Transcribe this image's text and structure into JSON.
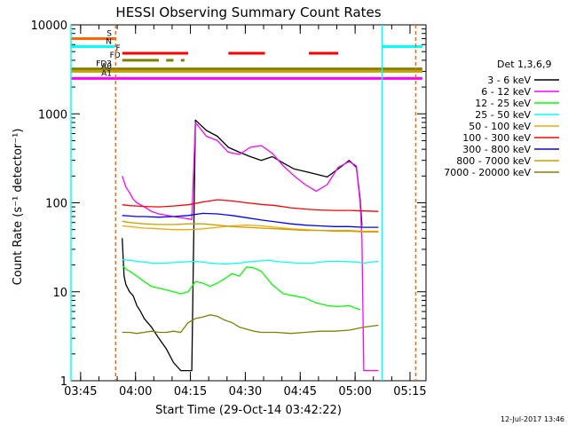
{
  "chart_data": {
    "type": "line",
    "title": "HESSI Observing Summary Count Rates",
    "xlabel": "Start Time (29-Oct-14 03:42:22)",
    "ylabel": "Count Rate (s⁻¹ detector⁻¹)",
    "y_scale": "log",
    "ylim": [
      1,
      10000
    ],
    "xlim_minutes": [
      0,
      97
    ],
    "x_ticks": [
      {
        "label": "03:45",
        "min": 2.63
      },
      {
        "label": "04:00",
        "min": 17.63
      },
      {
        "label": "04:15",
        "min": 32.63
      },
      {
        "label": "04:30",
        "min": 47.63
      },
      {
        "label": "04:45",
        "min": 62.63
      },
      {
        "label": "05:00",
        "min": 77.63
      },
      {
        "label": "05:15",
        "min": 92.63
      }
    ],
    "y_ticks": [
      {
        "label": "1",
        "value": 1
      },
      {
        "label": "10",
        "value": 10
      },
      {
        "label": "100",
        "value": 100
      },
      {
        "label": "1000",
        "value": 1000
      },
      {
        "label": "10000",
        "value": 10000
      }
    ],
    "legend_title": "Det 1,3,6,9",
    "legend_position": "right",
    "series": [
      {
        "name": "3 - 6 keV",
        "color": "#000000",
        "points": [
          [
            14,
            40
          ],
          [
            14.5,
            15
          ],
          [
            15,
            12
          ],
          [
            16,
            10
          ],
          [
            17,
            9
          ],
          [
            18,
            7
          ],
          [
            19,
            6
          ],
          [
            20,
            5
          ],
          [
            22,
            4
          ],
          [
            24,
            3
          ],
          [
            26,
            2.3
          ],
          [
            28,
            1.6
          ],
          [
            30,
            1.3
          ],
          [
            33,
            1.3
          ],
          [
            34,
            850
          ],
          [
            37,
            650
          ],
          [
            40,
            560
          ],
          [
            43,
            420
          ],
          [
            46,
            370
          ],
          [
            49,
            330
          ],
          [
            52,
            300
          ],
          [
            55,
            330
          ],
          [
            58,
            280
          ],
          [
            61,
            240
          ],
          [
            64,
            225
          ],
          [
            67,
            210
          ],
          [
            70,
            195
          ],
          [
            73,
            240
          ],
          [
            76,
            300
          ],
          [
            78,
            250
          ],
          [
            79,
            110
          ],
          [
            79.5,
            55
          ]
        ]
      },
      {
        "name": "6 - 12 keV",
        "color": "#ff00ff",
        "points": [
          [
            14,
            200
          ],
          [
            15,
            150
          ],
          [
            16,
            130
          ],
          [
            17,
            110
          ],
          [
            18,
            100
          ],
          [
            20,
            90
          ],
          [
            22,
            80
          ],
          [
            24,
            75
          ],
          [
            28,
            70
          ],
          [
            31,
            67
          ],
          [
            33,
            65
          ],
          [
            34,
            800
          ],
          [
            37,
            560
          ],
          [
            40,
            500
          ],
          [
            43,
            370
          ],
          [
            46,
            350
          ],
          [
            49,
            420
          ],
          [
            52,
            440
          ],
          [
            55,
            360
          ],
          [
            58,
            260
          ],
          [
            61,
            200
          ],
          [
            64,
            160
          ],
          [
            67,
            135
          ],
          [
            70,
            160
          ],
          [
            73,
            250
          ],
          [
            76,
            290
          ],
          [
            78,
            260
          ],
          [
            79,
            100
          ],
          [
            79.5,
            40
          ],
          [
            80,
            1.3
          ],
          [
            82,
            1.3
          ],
          [
            84,
            1.3
          ]
        ]
      },
      {
        "name": "12 - 25 keV",
        "color": "#00ff00",
        "points": [
          [
            14,
            20
          ],
          [
            15,
            18
          ],
          [
            16,
            17
          ],
          [
            18,
            15
          ],
          [
            20,
            13
          ],
          [
            22,
            11.5
          ],
          [
            24,
            11
          ],
          [
            26,
            10.5
          ],
          [
            28,
            10
          ],
          [
            30,
            9.5
          ],
          [
            32,
            10
          ],
          [
            34,
            13
          ],
          [
            36,
            12.5
          ],
          [
            38,
            11.5
          ],
          [
            40,
            12.5
          ],
          [
            42,
            14
          ],
          [
            44,
            16
          ],
          [
            46,
            15
          ],
          [
            48,
            19
          ],
          [
            50,
            18.5
          ],
          [
            52,
            17
          ],
          [
            55,
            12
          ],
          [
            58,
            9.5
          ],
          [
            61,
            9
          ],
          [
            64,
            8.5
          ],
          [
            67,
            7.5
          ],
          [
            70,
            7
          ],
          [
            73,
            6.8
          ],
          [
            76,
            7
          ],
          [
            78,
            6.5
          ],
          [
            79,
            6.3
          ]
        ]
      },
      {
        "name": "25 - 50 keV",
        "color": "#00ffff",
        "points": [
          [
            14,
            23
          ],
          [
            16,
            22.5
          ],
          [
            18,
            22
          ],
          [
            20,
            21.5
          ],
          [
            22,
            21
          ],
          [
            26,
            21
          ],
          [
            30,
            21.5
          ],
          [
            34,
            22
          ],
          [
            38,
            21
          ],
          [
            42,
            20.5
          ],
          [
            46,
            21
          ],
          [
            50,
            22
          ],
          [
            54,
            22.5
          ],
          [
            58,
            21.5
          ],
          [
            62,
            21
          ],
          [
            66,
            21
          ],
          [
            70,
            22
          ],
          [
            74,
            22
          ],
          [
            78,
            21.5
          ],
          [
            80,
            21
          ],
          [
            84,
            22
          ]
        ]
      },
      {
        "name": "50 - 100 keV",
        "color": "#ffa500",
        "points": [
          [
            14,
            55
          ],
          [
            16,
            54
          ],
          [
            18,
            53
          ],
          [
            20,
            52
          ],
          [
            24,
            51
          ],
          [
            28,
            50
          ],
          [
            32,
            50
          ],
          [
            36,
            51
          ],
          [
            40,
            53
          ],
          [
            44,
            55
          ],
          [
            48,
            56
          ],
          [
            52,
            55
          ],
          [
            56,
            53
          ],
          [
            60,
            51
          ],
          [
            64,
            50
          ],
          [
            68,
            49
          ],
          [
            72,
            49
          ],
          [
            76,
            49
          ],
          [
            80,
            48
          ],
          [
            84,
            48
          ]
        ]
      },
      {
        "name": "100 - 300 keV",
        "color": "#ff0000",
        "points": [
          [
            14,
            95
          ],
          [
            16,
            93
          ],
          [
            18,
            92
          ],
          [
            20,
            91
          ],
          [
            24,
            90
          ],
          [
            28,
            92
          ],
          [
            32,
            95
          ],
          [
            36,
            102
          ],
          [
            40,
            108
          ],
          [
            44,
            105
          ],
          [
            48,
            100
          ],
          [
            52,
            96
          ],
          [
            56,
            93
          ],
          [
            60,
            88
          ],
          [
            64,
            85
          ],
          [
            68,
            83
          ],
          [
            72,
            82
          ],
          [
            76,
            82
          ],
          [
            80,
            81
          ],
          [
            84,
            80
          ]
        ]
      },
      {
        "name": "300 - 800 keV",
        "color": "#0000ff",
        "points": [
          [
            14,
            72
          ],
          [
            16,
            71
          ],
          [
            18,
            70
          ],
          [
            20,
            70
          ],
          [
            24,
            69
          ],
          [
            28,
            70
          ],
          [
            32,
            72
          ],
          [
            36,
            76
          ],
          [
            40,
            75
          ],
          [
            44,
            72
          ],
          [
            48,
            68
          ],
          [
            52,
            64
          ],
          [
            56,
            61
          ],
          [
            60,
            58
          ],
          [
            64,
            56
          ],
          [
            68,
            55
          ],
          [
            72,
            54
          ],
          [
            76,
            54
          ],
          [
            80,
            53
          ],
          [
            84,
            53
          ]
        ]
      },
      {
        "name": "800 - 7000 keV",
        "color": "#c8a000",
        "points": [
          [
            14,
            62
          ],
          [
            16,
            60
          ],
          [
            18,
            59
          ],
          [
            20,
            58
          ],
          [
            24,
            57
          ],
          [
            28,
            57
          ],
          [
            32,
            58
          ],
          [
            36,
            58
          ],
          [
            40,
            56
          ],
          [
            44,
            54
          ],
          [
            48,
            53
          ],
          [
            52,
            52
          ],
          [
            56,
            51
          ],
          [
            60,
            50
          ],
          [
            64,
            49
          ],
          [
            68,
            49
          ],
          [
            72,
            48
          ],
          [
            76,
            48
          ],
          [
            80,
            47
          ],
          [
            84,
            47
          ]
        ]
      },
      {
        "name": "7000 - 20000 keV",
        "color": "#808000",
        "points": [
          [
            14,
            3.5
          ],
          [
            16,
            3.5
          ],
          [
            18,
            3.4
          ],
          [
            20,
            3.5
          ],
          [
            22,
            3.6
          ],
          [
            24,
            3.5
          ],
          [
            26,
            3.5
          ],
          [
            28,
            3.6
          ],
          [
            30,
            3.5
          ],
          [
            32,
            4.5
          ],
          [
            34,
            5
          ],
          [
            36,
            5.2
          ],
          [
            38,
            5.5
          ],
          [
            40,
            5.3
          ],
          [
            42,
            4.8
          ],
          [
            44,
            4.5
          ],
          [
            46,
            4
          ],
          [
            48,
            3.8
          ],
          [
            50,
            3.6
          ],
          [
            52,
            3.5
          ],
          [
            56,
            3.5
          ],
          [
            60,
            3.4
          ],
          [
            64,
            3.5
          ],
          [
            68,
            3.6
          ],
          [
            72,
            3.6
          ],
          [
            76,
            3.7
          ],
          [
            80,
            4
          ],
          [
            84,
            4.2
          ]
        ]
      }
    ],
    "state_bars": [
      {
        "label": "S",
        "color": "#ff6600",
        "value": 7000,
        "segments": [
          [
            0,
            12
          ]
        ]
      },
      {
        "label": "N",
        "color": "#00ffff",
        "value": 5700,
        "segments": [
          [
            0,
            12
          ],
          [
            85,
            96
          ]
        ]
      },
      {
        "label": "F",
        "color": "#ff0000",
        "value": 4800,
        "segments": [
          [
            14,
            32
          ],
          [
            43,
            53
          ],
          [
            65,
            73
          ]
        ]
      },
      {
        "label": "FD",
        "color": "#808000",
        "value": 4000,
        "segments": [
          [
            14,
            24
          ],
          [
            26,
            28
          ],
          [
            30,
            31
          ]
        ]
      },
      {
        "label": "FD3",
        "color": "#808000",
        "value": 3200,
        "segments": [
          [
            0,
            96
          ]
        ]
      },
      {
        "label": "A0",
        "color": "#c8a000",
        "value": 3000,
        "segments": [
          [
            0,
            96
          ]
        ]
      },
      {
        "label": "A1",
        "color": "#ff00ff",
        "value": 2500,
        "segments": [
          [
            0,
            96
          ]
        ]
      }
    ],
    "vertical_markers": [
      {
        "color": "#00ffff",
        "at": [
          0,
          85
        ]
      },
      {
        "color": "#ff6600",
        "at": [
          12.2,
          94.2
        ],
        "dashed": true
      }
    ],
    "footer": "12-Jul-2017 13:46"
  }
}
